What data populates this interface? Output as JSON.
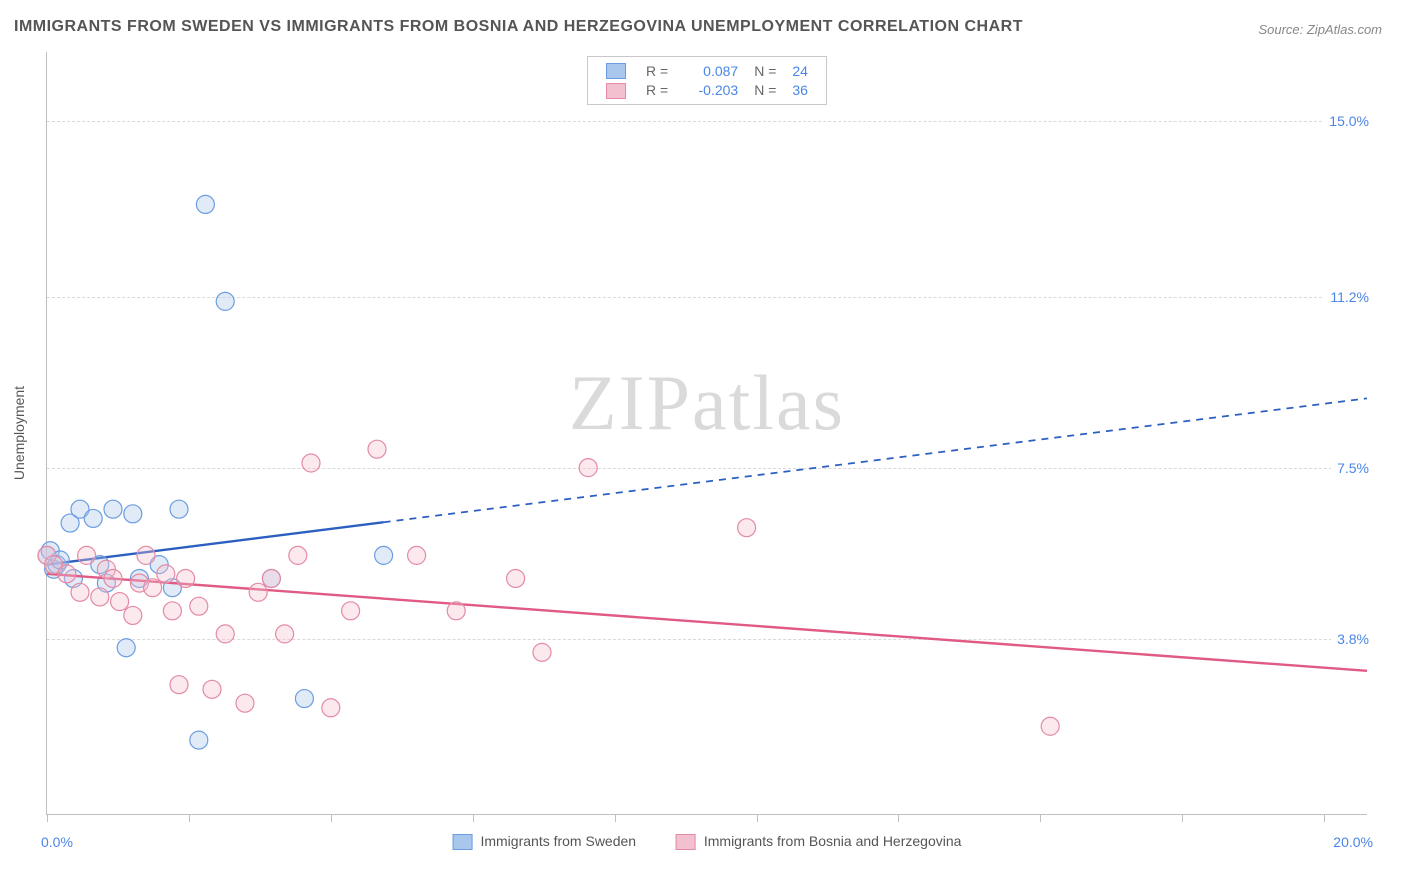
{
  "title": "IMMIGRANTS FROM SWEDEN VS IMMIGRANTS FROM BOSNIA AND HERZEGOVINA UNEMPLOYMENT CORRELATION CHART",
  "source": "Source: ZipAtlas.com",
  "watermark_a": "ZIP",
  "watermark_b": "atlas",
  "y_axis_title": "Unemployment",
  "chart": {
    "type": "scatter",
    "xlim": [
      0,
      20
    ],
    "ylim": [
      0,
      16.5
    ],
    "x_tick_positions": [
      0,
      2.15,
      4.3,
      6.45,
      8.6,
      10.75,
      12.9,
      15.05,
      17.2,
      19.35
    ],
    "y_gridlines": [
      3.8,
      7.5,
      11.2,
      15.0
    ],
    "y_tick_labels": [
      "3.8%",
      "7.5%",
      "11.2%",
      "15.0%"
    ],
    "x_label_min": "0.0%",
    "x_label_max": "20.0%",
    "background_color": "#ffffff",
    "grid_color": "#d9d9d9",
    "axis_color": "#bfbfbf",
    "marker_radius": 9,
    "marker_stroke_width": 1.2,
    "marker_fill_opacity": 0.35
  },
  "series": [
    {
      "name": "Immigrants from Sweden",
      "color_stroke": "#6b9de0",
      "color_fill": "#a9c6ec",
      "line_color": "#2b5fc1",
      "R": "0.087",
      "N": "24",
      "trend": {
        "x1": 0,
        "y1": 5.4,
        "x2": 20,
        "y2": 9.0,
        "solid_until_x": 5.1
      },
      "points": [
        [
          0.0,
          5.6
        ],
        [
          0.05,
          5.7
        ],
        [
          0.1,
          5.3
        ],
        [
          0.15,
          5.4
        ],
        [
          0.2,
          5.5
        ],
        [
          0.35,
          6.3
        ],
        [
          0.4,
          5.1
        ],
        [
          0.5,
          6.6
        ],
        [
          0.7,
          6.4
        ],
        [
          0.8,
          5.4
        ],
        [
          0.9,
          5.0
        ],
        [
          1.0,
          6.6
        ],
        [
          1.2,
          3.6
        ],
        [
          1.3,
          6.5
        ],
        [
          1.4,
          5.1
        ],
        [
          1.7,
          5.4
        ],
        [
          1.9,
          4.9
        ],
        [
          2.0,
          6.6
        ],
        [
          2.3,
          1.6
        ],
        [
          2.4,
          13.2
        ],
        [
          2.7,
          11.1
        ],
        [
          3.4,
          5.1
        ],
        [
          3.9,
          2.5
        ],
        [
          5.1,
          5.6
        ]
      ]
    },
    {
      "name": "Immigrants from Bosnia and Herzegovina",
      "color_stroke": "#e48aa5",
      "color_fill": "#f3c0cf",
      "line_color": "#e05a84",
      "R": "-0.203",
      "N": "36",
      "trend": {
        "x1": 0,
        "y1": 5.2,
        "x2": 20,
        "y2": 3.1,
        "solid_until_x": 20
      },
      "points": [
        [
          0.0,
          5.6
        ],
        [
          0.1,
          5.4
        ],
        [
          0.3,
          5.2
        ],
        [
          0.5,
          4.8
        ],
        [
          0.6,
          5.6
        ],
        [
          0.8,
          4.7
        ],
        [
          0.9,
          5.3
        ],
        [
          1.0,
          5.1
        ],
        [
          1.1,
          4.6
        ],
        [
          1.3,
          4.3
        ],
        [
          1.4,
          5.0
        ],
        [
          1.5,
          5.6
        ],
        [
          1.6,
          4.9
        ],
        [
          1.8,
          5.2
        ],
        [
          1.9,
          4.4
        ],
        [
          2.0,
          2.8
        ],
        [
          2.1,
          5.1
        ],
        [
          2.3,
          4.5
        ],
        [
          2.5,
          2.7
        ],
        [
          2.7,
          3.9
        ],
        [
          3.0,
          2.4
        ],
        [
          3.2,
          4.8
        ],
        [
          3.4,
          5.1
        ],
        [
          3.6,
          3.9
        ],
        [
          3.8,
          5.6
        ],
        [
          4.0,
          7.6
        ],
        [
          4.3,
          2.3
        ],
        [
          4.6,
          4.4
        ],
        [
          5.0,
          7.9
        ],
        [
          5.6,
          5.6
        ],
        [
          6.2,
          4.4
        ],
        [
          7.1,
          5.1
        ],
        [
          7.5,
          3.5
        ],
        [
          8.2,
          7.5
        ],
        [
          10.6,
          6.2
        ],
        [
          15.2,
          1.9
        ]
      ]
    }
  ],
  "legend_top": {
    "r_label": "R  =",
    "n_label": "N  =",
    "text_color": "#666666",
    "value_color": "#4a86e8"
  },
  "legend_bottom_label_a": "Immigrants from Sweden",
  "legend_bottom_label_b": "Immigrants from Bosnia and Herzegovina"
}
